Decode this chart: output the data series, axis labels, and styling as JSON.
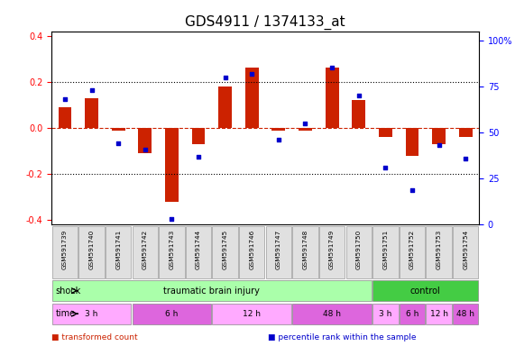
{
  "title": "GDS4911 / 1374133_at",
  "samples": [
    "GSM591739",
    "GSM591740",
    "GSM591741",
    "GSM591742",
    "GSM591743",
    "GSM591744",
    "GSM591745",
    "GSM591746",
    "GSM591747",
    "GSM591748",
    "GSM591749",
    "GSM591750",
    "GSM591751",
    "GSM591752",
    "GSM591753",
    "GSM591754"
  ],
  "transformed_count": [
    0.09,
    0.13,
    -0.01,
    -0.11,
    -0.32,
    -0.07,
    0.18,
    0.26,
    -0.01,
    -0.01,
    0.26,
    0.12,
    -0.04,
    -0.12,
    -0.07,
    -0.04
  ],
  "percentile_rank": [
    68,
    73,
    44,
    41,
    3,
    37,
    80,
    82,
    46,
    55,
    85,
    70,
    31,
    19,
    43,
    36
  ],
  "bar_color": "#cc2200",
  "dot_color": "#0000cc",
  "ylim_left": [
    -0.42,
    0.42
  ],
  "ylim_right": [
    0,
    105
  ],
  "yticks_left": [
    -0.4,
    -0.2,
    0.0,
    0.2,
    0.4
  ],
  "yticks_right": [
    0,
    25,
    50,
    75,
    100
  ],
  "hline_color": "#cc2200",
  "dotline_y": [
    0.2,
    -0.2
  ],
  "shock_label": "shock",
  "time_label": "time",
  "shock_groups": [
    {
      "label": "traumatic brain injury",
      "start": 0,
      "end": 11,
      "color": "#aaffaa"
    },
    {
      "label": "control",
      "start": 12,
      "end": 15,
      "color": "#44cc44"
    }
  ],
  "time_groups": [
    {
      "label": "3 h",
      "start": 0,
      "end": 2,
      "color": "#ffaaff"
    },
    {
      "label": "6 h",
      "start": 3,
      "end": 5,
      "color": "#dd66dd"
    },
    {
      "label": "12 h",
      "start": 6,
      "end": 8,
      "color": "#ffaaff"
    },
    {
      "label": "48 h",
      "start": 9,
      "end": 11,
      "color": "#dd66dd"
    },
    {
      "label": "3 h",
      "start": 12,
      "end": 12,
      "color": "#ffaaff"
    },
    {
      "label": "6 h",
      "start": 13,
      "end": 13,
      "color": "#dd66dd"
    },
    {
      "label": "12 h",
      "start": 14,
      "end": 14,
      "color": "#ffaaff"
    },
    {
      "label": "48 h",
      "start": 15,
      "end": 15,
      "color": "#dd66dd"
    }
  ],
  "legend_items": [
    {
      "label": "transformed count",
      "color": "#cc2200"
    },
    {
      "label": "percentile rank within the sample",
      "color": "#0000cc"
    }
  ],
  "bg_color": "#ffffff",
  "grid_color": "#cccccc",
  "tick_label_fontsize": 7,
  "title_fontsize": 11
}
